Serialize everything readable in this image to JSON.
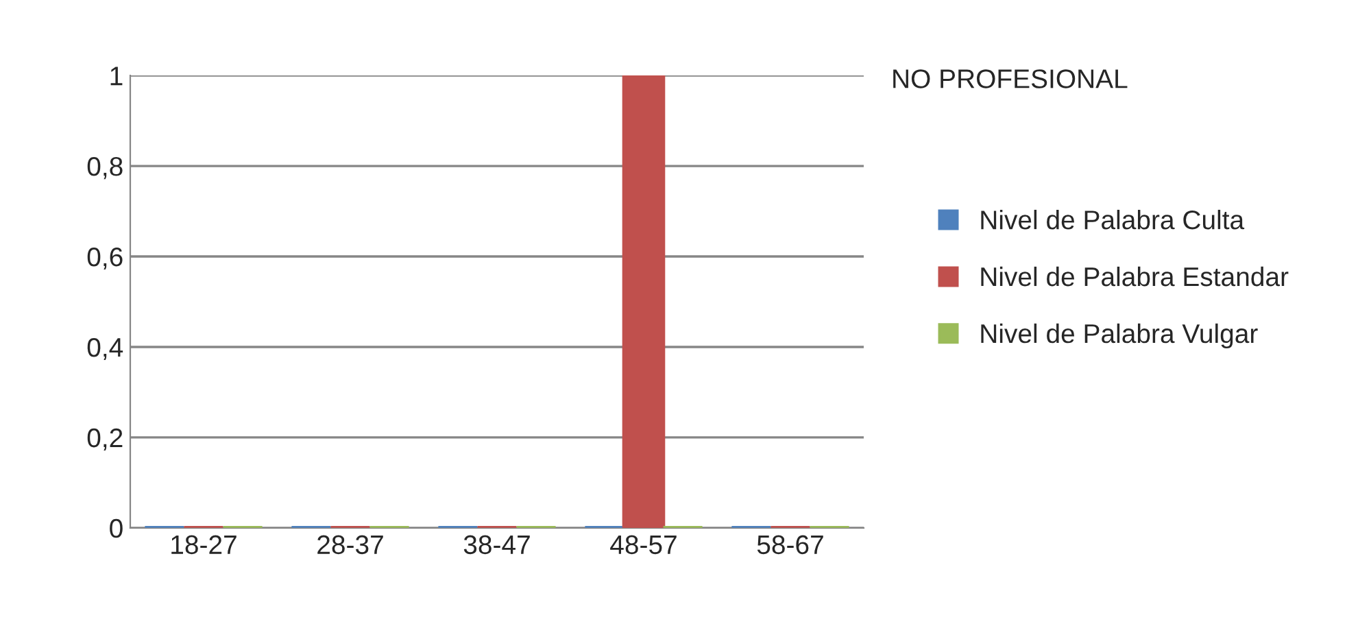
{
  "chart_data": {
    "type": "bar",
    "title": "NO PROFESIONAL",
    "categories": [
      "18-27",
      "28-37",
      "38-47",
      "48-57",
      "58-67"
    ],
    "series": [
      {
        "name": "Nivel de Palabra Culta",
        "color": "#4f81bd",
        "values": [
          0,
          0,
          0,
          0,
          0
        ]
      },
      {
        "name": "Nivel de Palabra Estandar",
        "color": "#c0504d",
        "values": [
          0,
          0,
          0,
          1,
          0
        ]
      },
      {
        "name": "Nivel de Palabra Vulgar",
        "color": "#9bbb59",
        "values": [
          0,
          0,
          0,
          0,
          0
        ]
      }
    ],
    "ylim": [
      0,
      1
    ],
    "yticks": [
      0,
      {
        "value": 0.2,
        "label": "0,2"
      },
      {
        "value": 0.4,
        "label": "0,4"
      },
      {
        "value": 0.6,
        "label": "0,6"
      },
      {
        "value": 0.8,
        "label": "0,8"
      },
      1
    ],
    "grid": "y",
    "legend": "right"
  }
}
